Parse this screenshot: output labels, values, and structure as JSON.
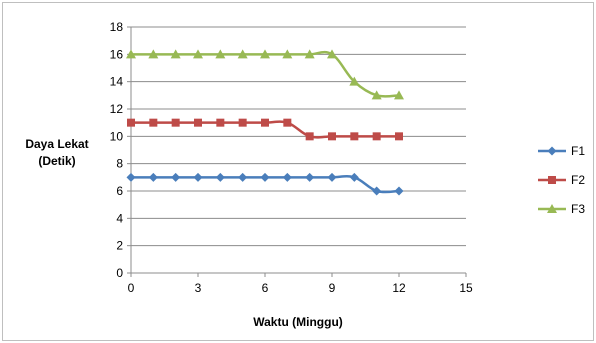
{
  "chart_data": {
    "type": "line",
    "xlabel": "Waktu (Minggu)",
    "ylabel_lines": [
      "Daya Lekat",
      "(Detik)"
    ],
    "xlim": [
      0,
      15
    ],
    "ylim": [
      0,
      18
    ],
    "x_ticks": [
      0,
      3,
      6,
      9,
      12,
      15
    ],
    "y_ticks": [
      0,
      2,
      4,
      6,
      8,
      10,
      12,
      14,
      16,
      18
    ],
    "grid": "horizontal",
    "legend_position": "right",
    "x": [
      0,
      1,
      2,
      3,
      4,
      5,
      6,
      7,
      8,
      9,
      10,
      11,
      12
    ],
    "series": [
      {
        "name": "F1",
        "color": "#4a7ebb",
        "marker": "diamond",
        "values": [
          7,
          7,
          7,
          7,
          7,
          7,
          7,
          7,
          7,
          7,
          7,
          6,
          6
        ]
      },
      {
        "name": "F2",
        "color": "#be4b48",
        "marker": "square",
        "values": [
          11,
          11,
          11,
          11,
          11,
          11,
          11,
          11,
          10,
          10,
          10,
          10,
          10
        ]
      },
      {
        "name": "F3",
        "color": "#98b954",
        "marker": "triangle",
        "values": [
          16,
          16,
          16,
          16,
          16,
          16,
          16,
          16,
          16,
          16,
          14,
          13,
          13
        ]
      }
    ]
  }
}
